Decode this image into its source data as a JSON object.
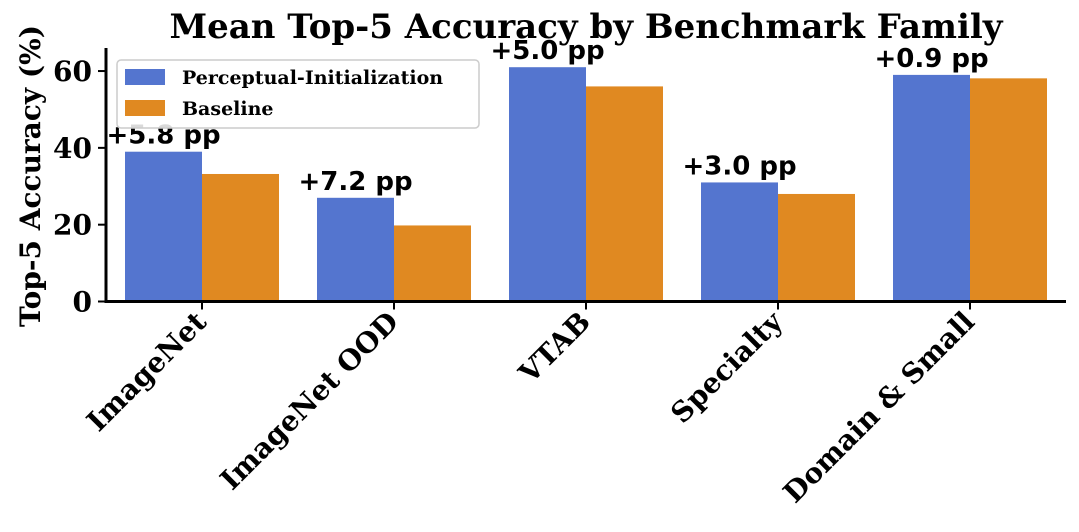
{
  "chart_data": {
    "type": "bar",
    "title": "Mean Top-5 Accuracy by Benchmark Family",
    "xlabel": "",
    "ylabel": "Top-5 Accuracy (%)",
    "ylim": [
      0,
      66
    ],
    "yticks": [
      0,
      20,
      40,
      60
    ],
    "grid": false,
    "legend_position": "top-left",
    "categories": [
      "ImageNet",
      "ImageNet OOD",
      "VTAB",
      "Specialty",
      "Domain & Small"
    ],
    "series": [
      {
        "name": "Perceptual-Initialization",
        "color": "#5475CF",
        "values": [
          39,
          27,
          61,
          31,
          59
        ]
      },
      {
        "name": "Baseline",
        "color": "#E08921",
        "values": [
          33.2,
          19.8,
          56,
          28,
          58.1
        ]
      }
    ],
    "annotations": [
      "+5.8 pp",
      "+7.2 pp",
      "+5.0 pp",
      "+3.0 pp",
      "+0.9 pp"
    ]
  }
}
